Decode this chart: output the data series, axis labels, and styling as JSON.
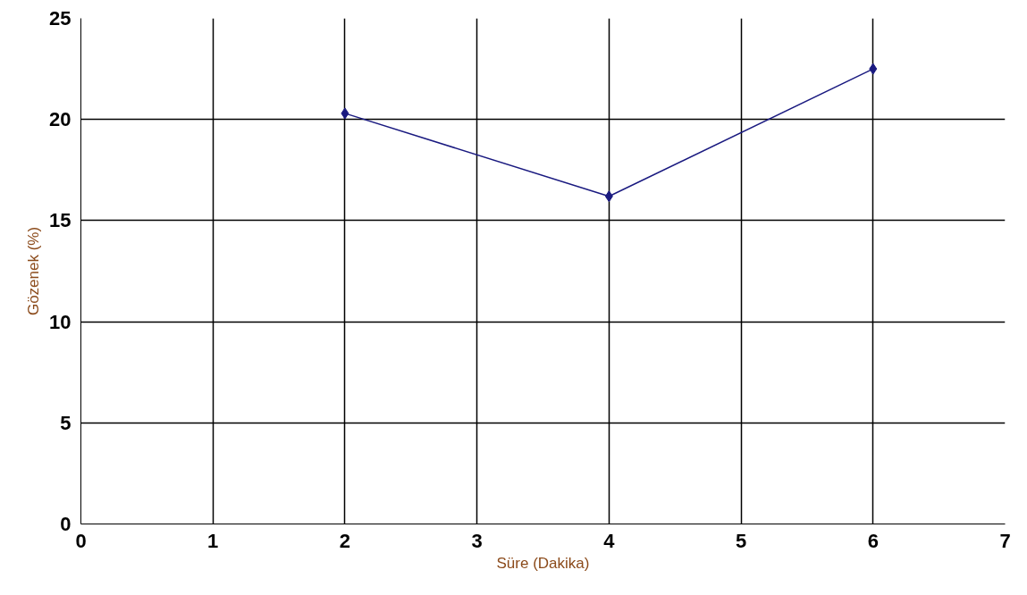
{
  "chart_data": {
    "type": "line",
    "xlabel": "Süre (Dakika)",
    "ylabel": "Gözenek (%)",
    "x": [
      2,
      4,
      6
    ],
    "series": [
      {
        "color": "#1a1a80",
        "values": [
          20.3,
          16.2,
          22.5
        ]
      }
    ],
    "xlim": [
      0,
      7
    ],
    "xticks": [
      0,
      1,
      2,
      3,
      4,
      5,
      6,
      7
    ],
    "ylim": [
      0,
      25
    ],
    "yticks": [
      0,
      5,
      10,
      15,
      20,
      25
    ],
    "grid": true,
    "marker": "diamond",
    "line_style": "solid"
  }
}
